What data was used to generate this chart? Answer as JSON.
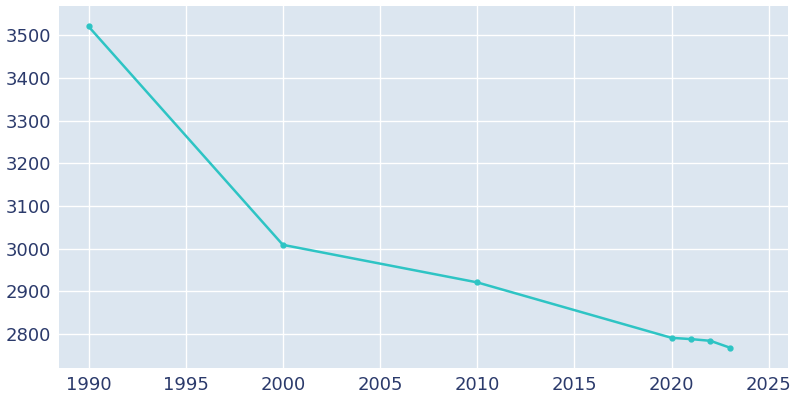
{
  "years": [
    1990,
    2000,
    2010,
    2020,
    2021,
    2022,
    2023
  ],
  "population": [
    3521,
    3009,
    2921,
    2791,
    2788,
    2784,
    2768
  ],
  "line_color": "#2ec4c4",
  "marker": "o",
  "marker_size": 3.5,
  "plot_bg_color": "#dce6f0",
  "fig_bg_color": "#ffffff",
  "grid_color": "#ffffff",
  "ylim": [
    2720,
    3570
  ],
  "xlim": [
    1988.5,
    2026
  ],
  "yticks": [
    2800,
    2900,
    3000,
    3100,
    3200,
    3300,
    3400,
    3500
  ],
  "xticks": [
    1990,
    1995,
    2000,
    2005,
    2010,
    2015,
    2020,
    2025
  ],
  "tick_fontsize": 13,
  "tick_color": "#2b3a6b",
  "linewidth": 1.8
}
